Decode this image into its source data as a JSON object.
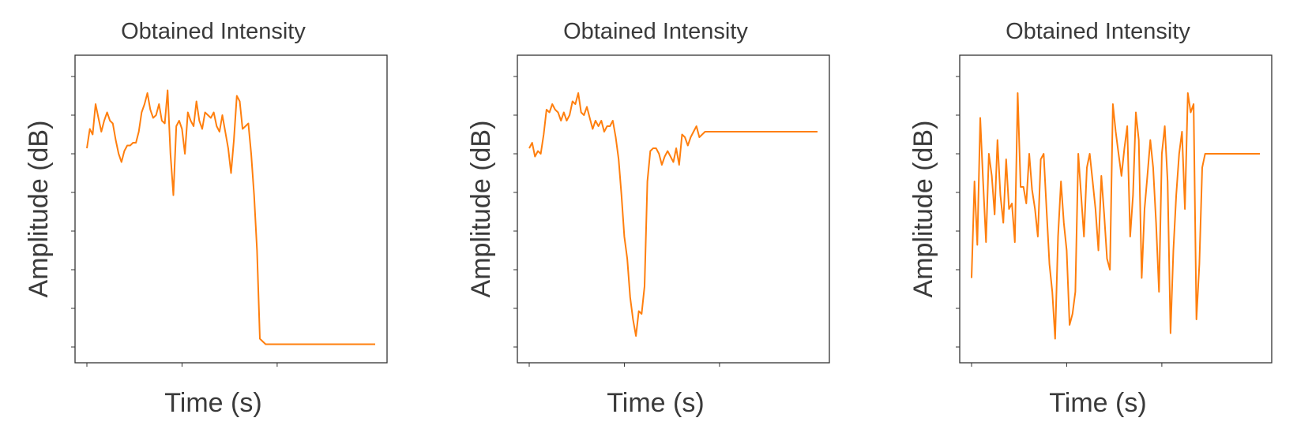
{
  "chart_data": [
    {
      "type": "line",
      "title": "Obtained Intensity",
      "xlabel": "Time (s)",
      "ylabel": "Amplitude (dB)",
      "color": "#ff7f0e",
      "xlim": [
        0,
        100
      ],
      "ylim": [
        0,
        100
      ],
      "x": [
        0,
        1,
        2,
        3,
        4,
        5,
        6,
        7,
        8,
        9,
        10,
        11,
        12,
        13,
        14,
        15,
        16,
        17,
        18,
        19,
        20,
        21,
        22,
        23,
        24,
        25,
        26,
        27,
        28,
        29,
        30,
        31,
        32,
        33,
        34,
        35,
        36,
        37,
        38,
        39,
        40,
        41,
        42,
        43,
        44,
        45,
        46,
        47,
        48,
        49,
        50,
        51,
        52,
        53,
        54,
        55,
        56,
        57,
        58,
        59,
        60,
        61,
        62,
        63,
        64,
        65,
        66,
        67,
        68,
        69,
        70,
        71,
        72,
        73,
        74,
        75,
        76,
        77,
        78,
        79,
        80,
        81,
        82,
        83,
        84,
        85,
        86,
        87,
        88,
        89,
        90,
        91,
        92,
        93,
        94,
        95,
        96,
        97,
        98,
        99,
        100
      ],
      "series": [
        {
          "values": [
            72,
            79,
            77,
            88,
            83,
            78,
            82,
            85,
            82,
            81,
            75,
            70,
            67,
            71,
            73,
            73,
            74,
            74,
            78,
            85,
            88,
            92,
            86,
            83,
            84,
            88,
            82,
            81,
            93,
            70,
            55,
            80,
            82,
            79,
            70,
            85,
            82,
            80,
            89,
            82,
            79,
            85,
            84,
            83,
            85,
            80,
            78,
            84,
            78,
            72,
            63,
            75,
            91,
            89,
            79,
            80,
            81,
            70,
            55,
            35,
            3,
            2,
            1,
            1,
            1,
            1,
            1,
            1,
            1,
            1,
            1,
            1,
            1,
            1,
            1,
            1,
            1,
            1,
            1,
            1,
            1,
            1,
            1,
            1,
            1,
            1,
            1,
            1,
            1,
            1,
            1,
            1,
            1,
            1,
            1,
            1,
            1,
            1,
            1,
            1,
            1
          ]
        },
        {
          "values": [
            72,
            74,
            69,
            71,
            70,
            77,
            86,
            85,
            88,
            86,
            85,
            82,
            85,
            82,
            84,
            89,
            88,
            92,
            85,
            84,
            87,
            83,
            79,
            82,
            80,
            82,
            78,
            80,
            80,
            82,
            76,
            68,
            55,
            40,
            32,
            18,
            10,
            4,
            13,
            12,
            22,
            60,
            71,
            72,
            72,
            70,
            66,
            69,
            71,
            69,
            67,
            72,
            66,
            77,
            76,
            73,
            76,
            78,
            80,
            76,
            77,
            78,
            78,
            78,
            78,
            78,
            78,
            78,
            78,
            78,
            78,
            78,
            78,
            78,
            78,
            78,
            78,
            78,
            78,
            78,
            78,
            78,
            78,
            78,
            78,
            78,
            78,
            78,
            78,
            78,
            78,
            78,
            78,
            78,
            78,
            78,
            78,
            78,
            78,
            78,
            78
          ]
        },
        {
          "values": [
            25,
            60,
            37,
            83,
            60,
            38,
            70,
            62,
            48,
            75,
            55,
            45,
            68,
            50,
            52,
            38,
            92,
            58,
            58,
            52,
            70,
            57,
            50,
            40,
            68,
            70,
            50,
            30,
            20,
            3,
            40,
            60,
            45,
            35,
            8,
            12,
            20,
            70,
            55,
            40,
            65,
            70,
            60,
            50,
            35,
            62,
            48,
            32,
            28,
            88,
            78,
            70,
            62,
            72,
            80,
            40,
            55,
            85,
            75,
            25,
            50,
            62,
            75,
            65,
            45,
            20,
            70,
            80,
            60,
            5,
            35,
            55,
            70,
            78,
            50,
            92,
            85,
            88,
            10,
            30,
            65,
            70,
            70,
            70,
            70,
            70,
            70,
            70,
            70,
            70,
            70,
            70,
            70,
            70,
            70,
            70,
            70,
            70,
            70,
            70,
            70
          ]
        }
      ]
    }
  ]
}
